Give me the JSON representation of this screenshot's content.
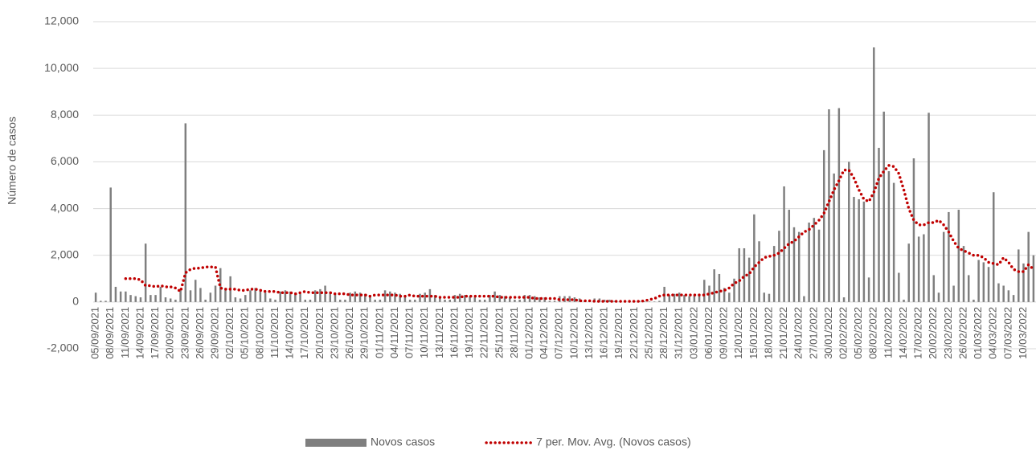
{
  "chart_data": {
    "type": "bar",
    "y_axis_label": "Número de casos",
    "categories": [
      "05/09/2021",
      null,
      null,
      "08/09/2021",
      null,
      null,
      "11/09/2021",
      null,
      null,
      "14/09/2021",
      null,
      null,
      "17/09/2021",
      null,
      null,
      "20/09/2021",
      null,
      null,
      "23/09/2021",
      null,
      null,
      "26/09/2021",
      null,
      null,
      "29/09/2021",
      null,
      null,
      "02/10/2021",
      null,
      null,
      "05/10/2021",
      null,
      null,
      "08/10/2021",
      null,
      null,
      "11/10/2021",
      null,
      null,
      "14/10/2021",
      null,
      null,
      "17/10/2021",
      null,
      null,
      "20/10/2021",
      null,
      null,
      "23/10/2021",
      null,
      null,
      "26/10/2021",
      null,
      null,
      "29/10/2021",
      null,
      null,
      "01/11/2021",
      null,
      null,
      "04/11/2021",
      null,
      null,
      "07/11/2021",
      null,
      null,
      "10/11/2021",
      null,
      null,
      "13/11/2021",
      null,
      null,
      "16/11/2021",
      null,
      null,
      "19/11/2021",
      null,
      null,
      "22/11/2021",
      null,
      null,
      "25/11/2021",
      null,
      null,
      "28/11/2021",
      null,
      null,
      "01/12/2021",
      null,
      null,
      "04/12/2021",
      null,
      null,
      "07/12/2021",
      null,
      null,
      "10/12/2021",
      null,
      null,
      "13/12/2021",
      null,
      null,
      "16/12/2021",
      null,
      null,
      "19/12/2021",
      null,
      null,
      "22/12/2021",
      null,
      null,
      "25/12/2021",
      null,
      null,
      "28/12/2021",
      null,
      null,
      "31/12/2021",
      null,
      null,
      "03/01/2022",
      null,
      null,
      "06/01/2022",
      null,
      null,
      "09/01/2022",
      null,
      null,
      "12/01/2022",
      null,
      null,
      "15/01/2022",
      null,
      null,
      "18/01/2022",
      null,
      null,
      "21/01/2022",
      null,
      null,
      "24/01/2022",
      null,
      null,
      "27/01/2022",
      null,
      null,
      "30/01/2022",
      null,
      null,
      "02/02/2022",
      null,
      null,
      "05/02/2022",
      null,
      null,
      "08/02/2022",
      null,
      null,
      "11/02/2022",
      null,
      null,
      "14/02/2022",
      null,
      null,
      "17/02/2022",
      null,
      null,
      "20/02/2022",
      null,
      null,
      "23/02/2022",
      null,
      null,
      "26/02/2022",
      null,
      null,
      "01/03/2022",
      null,
      null,
      "04/03/2022",
      null,
      null,
      "07/03/2022",
      null,
      null,
      "10/03/2022",
      null,
      null
    ],
    "series": [
      {
        "name": "Novos casos",
        "type": "bar",
        "color": "#7f7f7f",
        "values": [
          400,
          50,
          50,
          4900,
          650,
          450,
          450,
          300,
          250,
          200,
          2500,
          300,
          300,
          650,
          200,
          150,
          100,
          500,
          7650,
          500,
          950,
          600,
          100,
          400,
          700,
          1450,
          600,
          1100,
          200,
          150,
          300,
          500,
          600,
          550,
          400,
          150,
          100,
          450,
          500,
          450,
          400,
          350,
          100,
          100,
          500,
          550,
          700,
          450,
          350,
          100,
          100,
          400,
          450,
          400,
          350,
          300,
          100,
          100,
          500,
          450,
          400,
          350,
          250,
          100,
          100,
          350,
          400,
          550,
          300,
          250,
          100,
          100,
          300,
          350,
          300,
          250,
          200,
          100,
          100,
          300,
          450,
          300,
          250,
          200,
          100,
          100,
          300,
          300,
          250,
          200,
          200,
          50,
          50,
          250,
          250,
          250,
          200,
          150,
          50,
          50,
          150,
          150,
          100,
          100,
          50,
          20,
          20,
          50,
          50,
          50,
          30,
          20,
          20,
          50,
          650,
          300,
          350,
          400,
          300,
          250,
          300,
          350,
          950,
          700,
          1400,
          1200,
          600,
          400,
          1000,
          2300,
          2300,
          1900,
          3750,
          2600,
          400,
          350,
          2400,
          3050,
          4950,
          3950,
          3200,
          3000,
          250,
          3400,
          3600,
          3100,
          6500,
          8250,
          5500,
          8300,
          200,
          6000,
          4500,
          4400,
          4300,
          1050,
          10900,
          6600,
          8150,
          5600,
          5100,
          1250,
          100,
          2500,
          6150,
          2800,
          2900,
          8100,
          1150,
          400,
          3000,
          3850,
          700,
          3950,
          2400,
          1150,
          100,
          1800,
          1700,
          1500,
          4700,
          800,
          700,
          500,
          300,
          2250,
          1650,
          3000,
          2000
        ]
      },
      {
        "name": "7 per. Mov. Avg. (Novos casos)",
        "type": "line",
        "color": "#c00000",
        "values": [
          null,
          null,
          null,
          null,
          null,
          null,
          1000,
          1000,
          1000,
          950,
          700,
          700,
          650,
          700,
          650,
          650,
          600,
          450,
          1250,
          1400,
          1450,
          1450,
          1500,
          1500,
          1500,
          600,
          550,
          550,
          550,
          500,
          500,
          550,
          550,
          500,
          450,
          450,
          450,
          400,
          400,
          400,
          350,
          400,
          450,
          400,
          400,
          400,
          400,
          400,
          350,
          350,
          350,
          300,
          300,
          300,
          300,
          250,
          300,
          300,
          300,
          300,
          300,
          250,
          250,
          300,
          250,
          250,
          250,
          250,
          250,
          200,
          200,
          200,
          200,
          200,
          250,
          250,
          250,
          250,
          250,
          250,
          250,
          200,
          200,
          200,
          200,
          200,
          200,
          200,
          150,
          150,
          150,
          150,
          150,
          100,
          100,
          100,
          100,
          50,
          50,
          50,
          30,
          30,
          30,
          30,
          30,
          30,
          30,
          30,
          30,
          30,
          50,
          100,
          150,
          250,
          300,
          300,
          300,
          300,
          300,
          300,
          300,
          300,
          300,
          350,
          400,
          450,
          500,
          600,
          800,
          900,
          1100,
          1200,
          1500,
          1700,
          1900,
          1950,
          2000,
          2100,
          2300,
          2500,
          2600,
          2800,
          3000,
          3100,
          3300,
          3500,
          3800,
          4300,
          4800,
          5200,
          5650,
          5650,
          5300,
          4800,
          4400,
          4300,
          4700,
          5300,
          5600,
          5850,
          5800,
          5500,
          4800,
          4000,
          3500,
          3300,
          3300,
          3400,
          3400,
          3500,
          3300,
          3000,
          2600,
          2300,
          2200,
          2100,
          2000,
          2000,
          1900,
          1700,
          1650,
          1600,
          1900,
          1700,
          1400,
          1300,
          1300,
          1600,
          1400
        ]
      }
    ],
    "ylim": [
      -2000,
      12000
    ],
    "yticks": [
      {
        "value": -2000,
        "label": "-2,000"
      },
      0,
      {
        "value": 2000,
        "label": "2,000"
      },
      {
        "value": 4000,
        "label": "4,000"
      },
      {
        "value": 6000,
        "label": "6,000"
      },
      {
        "value": 8000,
        "label": "8,000"
      },
      {
        "value": 10000,
        "label": "10,000"
      },
      {
        "value": 12000,
        "label": "12,000"
      }
    ],
    "grid": true,
    "legend": "bottom"
  }
}
